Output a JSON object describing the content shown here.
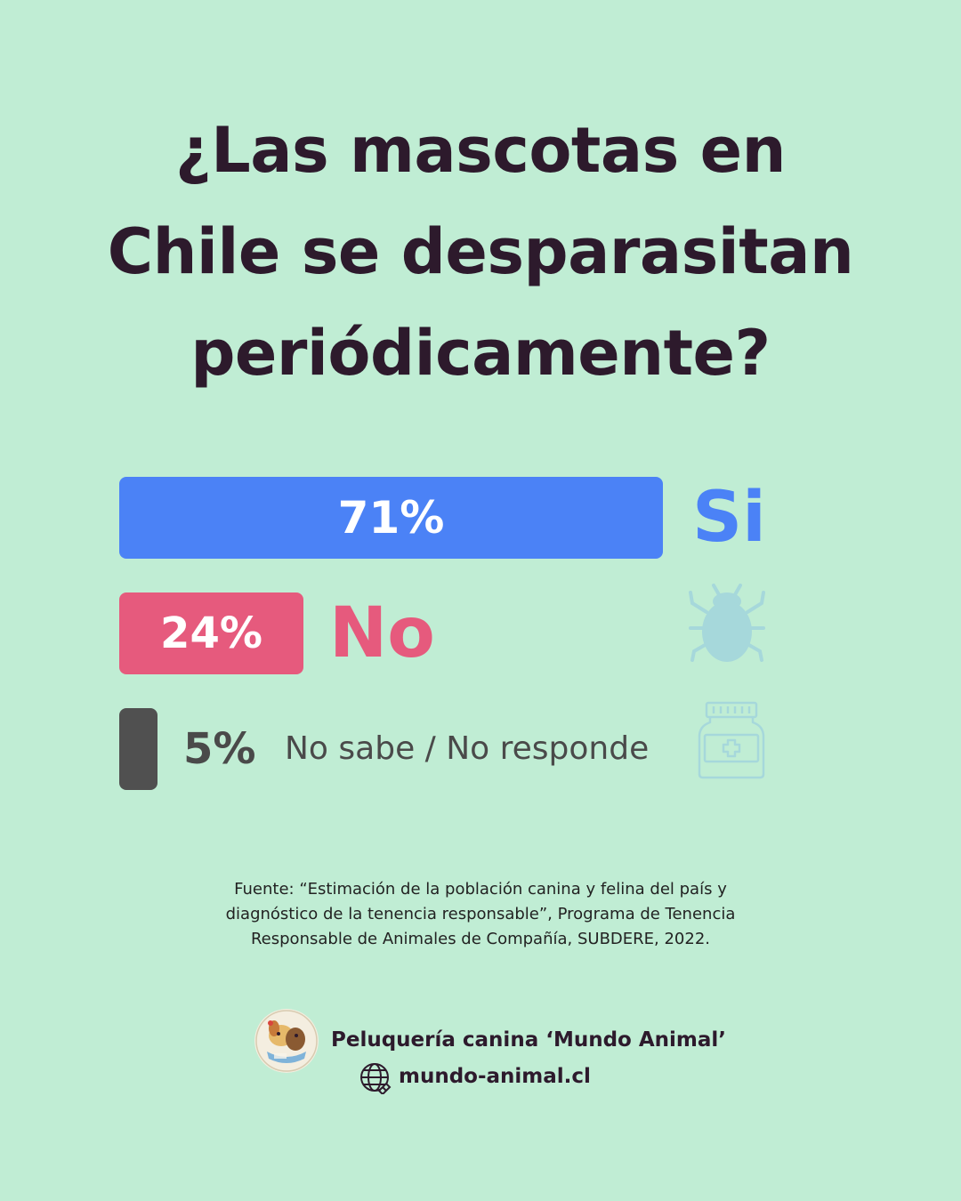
{
  "title_lines": [
    "¿Las mascotas en",
    "Chile se desparasitan",
    "periódicamente?"
  ],
  "colors": {
    "background": "#c0edd4",
    "text_dark": "#2d1a2c",
    "si": "#4b82f6",
    "no": "#e65a7d",
    "no_sabe": "#505050",
    "icon_tint": "#a6d8db"
  },
  "chart_data": {
    "type": "bar",
    "orientation": "horizontal",
    "categories": [
      "Si",
      "No",
      "No sabe / No responde"
    ],
    "values": [
      71,
      24,
      5
    ],
    "value_labels": [
      "71%",
      "24%",
      "5%"
    ],
    "unit": "%"
  },
  "icons": {
    "bug": "bug-icon",
    "medicine": "medicine-bottle-icon",
    "globe": "globe-icon"
  },
  "source_lines": [
    "Fuente: “Estimación de la población canina y felina del país y",
    "diagnóstico de la tenencia responsable”, Programa de Tenencia",
    "Responsable de Animales de Compañía, SUBDERE, 2022."
  ],
  "footer": {
    "brand": "Peluquería canina ‘Mundo Animal’",
    "website": "mundo-animal.cl"
  }
}
